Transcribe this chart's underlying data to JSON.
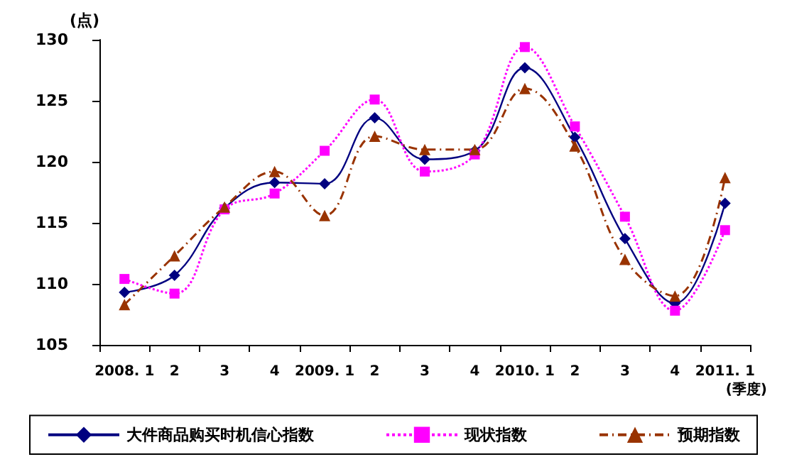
{
  "chart_data": {
    "type": "line",
    "ylabel": "(点)",
    "xlabel": "(季度)",
    "categories": [
      "2008. 1",
      "2",
      "3",
      "4",
      "2009. 1",
      "2",
      "3",
      "4",
      "2010. 1",
      "2",
      "3",
      "4",
      "2011. 1"
    ],
    "series": [
      {
        "name": "大件商品购买时机信心指数",
        "color": "#000080",
        "marker": "diamond",
        "line_style": "solid",
        "values": [
          109.3,
          110.7,
          116.2,
          118.3,
          118.2,
          123.6,
          120.2,
          120.9,
          127.7,
          122.0,
          113.7,
          108.4,
          116.6
        ]
      },
      {
        "name": "现状指数",
        "color": "#ff00ff",
        "marker": "square",
        "line_style": "dotted",
        "values": [
          110.4,
          109.2,
          116.1,
          117.4,
          120.9,
          125.1,
          119.2,
          120.6,
          129.4,
          122.9,
          115.5,
          107.8,
          114.4
        ]
      },
      {
        "name": "预期指数",
        "color": "#993300",
        "marker": "triangle",
        "line_style": "dashed",
        "values": [
          108.3,
          112.3,
          116.3,
          119.2,
          115.6,
          122.1,
          121.0,
          121.0,
          126.0,
          121.3,
          112.0,
          109.0,
          118.7
        ]
      }
    ],
    "ylim": [
      105,
      130
    ],
    "yticks": [
      105,
      110,
      115,
      120,
      125,
      130
    ],
    "grid": false,
    "legend": "bottom"
  }
}
